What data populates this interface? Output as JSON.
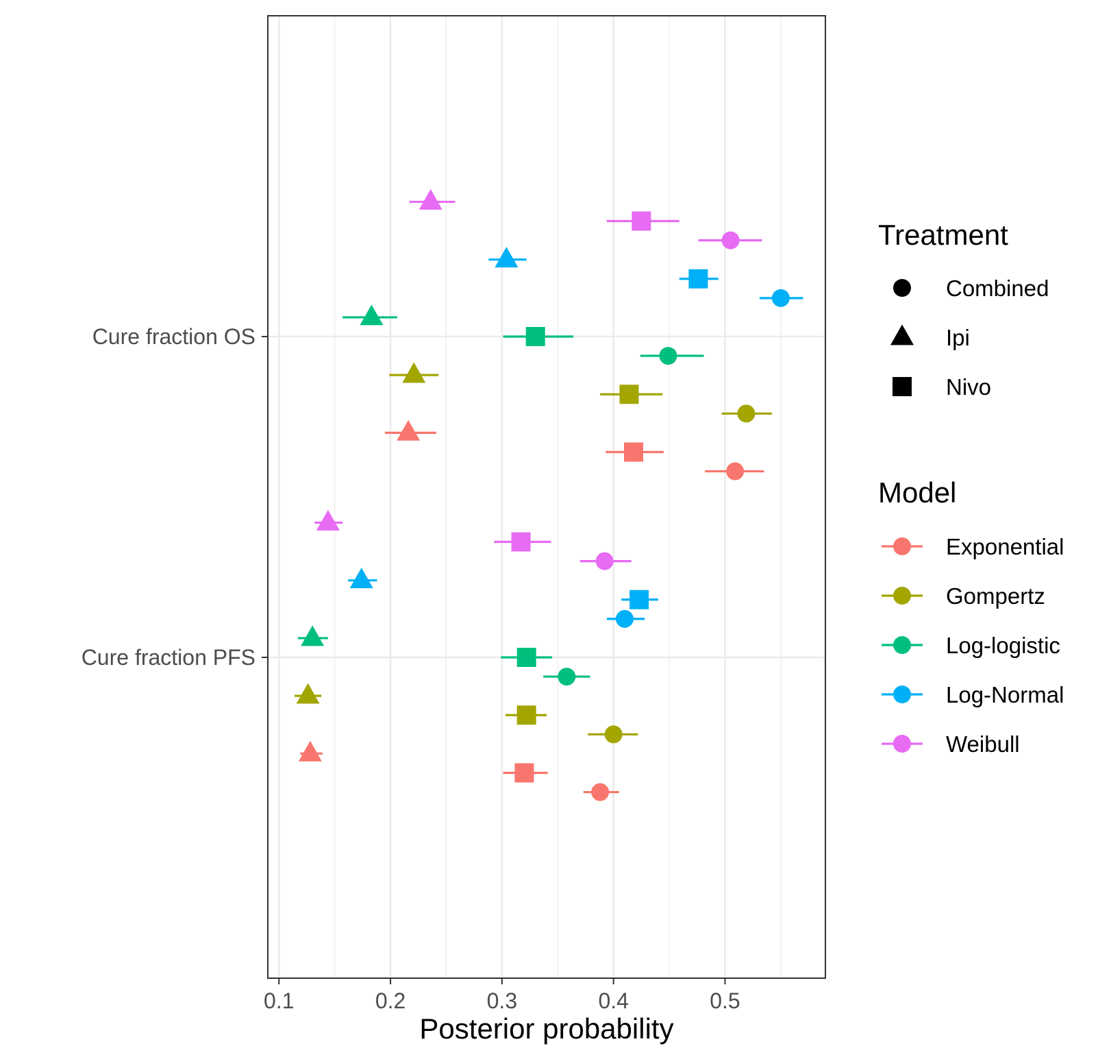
{
  "chart_data": {
    "type": "scatter",
    "subtype": "dot-and-interval",
    "orientation": "horizontal",
    "title": "",
    "xlabel": "Posterior probability",
    "ylabel": "",
    "xlim": [
      0.09,
      0.59
    ],
    "x_ticks": [
      0.1,
      0.2,
      0.3,
      0.4,
      0.5
    ],
    "x_tick_labels": [
      "0.1",
      "0.2",
      "0.3",
      "0.4",
      "0.5"
    ],
    "categories": [
      "Cure fraction PFS",
      "Cure fraction OS"
    ],
    "grid": true,
    "theme": "bw",
    "legend_position": "right",
    "legend": {
      "treatment": {
        "title": "Treatment",
        "items": [
          {
            "label": "Combined",
            "shape": "circle"
          },
          {
            "label": "Ipi",
            "shape": "triangle"
          },
          {
            "label": "Nivo",
            "shape": "square"
          }
        ]
      },
      "model": {
        "title": "Model",
        "items": [
          {
            "label": "Exponential",
            "color": "#F8766D"
          },
          {
            "label": "Gompertz",
            "color": "#A3A500"
          },
          {
            "label": "Log-logistic",
            "color": "#00BF7D"
          },
          {
            "label": "Log-Normal",
            "color": "#00B0F6"
          },
          {
            "label": "Weibull",
            "color": "#E76BF3"
          }
        ]
      }
    },
    "treatment_order": [
      "Combined",
      "Nivo",
      "Ipi"
    ],
    "series": [
      {
        "category": "Cure fraction PFS",
        "model": "Exponential",
        "treatment": "Combined",
        "x": 0.388,
        "low": 0.373,
        "high": 0.405
      },
      {
        "category": "Cure fraction PFS",
        "model": "Exponential",
        "treatment": "Nivo",
        "x": 0.32,
        "low": 0.301,
        "high": 0.341
      },
      {
        "category": "Cure fraction PFS",
        "model": "Exponential",
        "treatment": "Ipi",
        "x": 0.128,
        "low": 0.119,
        "high": 0.139
      },
      {
        "category": "Cure fraction PFS",
        "model": "Gompertz",
        "treatment": "Combined",
        "x": 0.4,
        "low": 0.377,
        "high": 0.422
      },
      {
        "category": "Cure fraction PFS",
        "model": "Gompertz",
        "treatment": "Nivo",
        "x": 0.322,
        "low": 0.303,
        "high": 0.34
      },
      {
        "category": "Cure fraction PFS",
        "model": "Gompertz",
        "treatment": "Ipi",
        "x": 0.126,
        "low": 0.114,
        "high": 0.138
      },
      {
        "category": "Cure fraction PFS",
        "model": "Log-logistic",
        "treatment": "Combined",
        "x": 0.358,
        "low": 0.337,
        "high": 0.379
      },
      {
        "category": "Cure fraction PFS",
        "model": "Log-logistic",
        "treatment": "Nivo",
        "x": 0.322,
        "low": 0.299,
        "high": 0.345
      },
      {
        "category": "Cure fraction PFS",
        "model": "Log-logistic",
        "treatment": "Ipi",
        "x": 0.13,
        "low": 0.117,
        "high": 0.144
      },
      {
        "category": "Cure fraction PFS",
        "model": "Log-Normal",
        "treatment": "Combined",
        "x": 0.41,
        "low": 0.394,
        "high": 0.428
      },
      {
        "category": "Cure fraction PFS",
        "model": "Log-Normal",
        "treatment": "Nivo",
        "x": 0.423,
        "low": 0.407,
        "high": 0.44
      },
      {
        "category": "Cure fraction PFS",
        "model": "Log-Normal",
        "treatment": "Ipi",
        "x": 0.174,
        "low": 0.162,
        "high": 0.188
      },
      {
        "category": "Cure fraction PFS",
        "model": "Weibull",
        "treatment": "Combined",
        "x": 0.392,
        "low": 0.37,
        "high": 0.416
      },
      {
        "category": "Cure fraction PFS",
        "model": "Weibull",
        "treatment": "Nivo",
        "x": 0.317,
        "low": 0.293,
        "high": 0.344
      },
      {
        "category": "Cure fraction PFS",
        "model": "Weibull",
        "treatment": "Ipi",
        "x": 0.144,
        "low": 0.132,
        "high": 0.157
      },
      {
        "category": "Cure fraction OS",
        "model": "Exponential",
        "treatment": "Combined",
        "x": 0.509,
        "low": 0.482,
        "high": 0.535
      },
      {
        "category": "Cure fraction OS",
        "model": "Exponential",
        "treatment": "Nivo",
        "x": 0.418,
        "low": 0.393,
        "high": 0.445
      },
      {
        "category": "Cure fraction OS",
        "model": "Exponential",
        "treatment": "Ipi",
        "x": 0.216,
        "low": 0.195,
        "high": 0.241
      },
      {
        "category": "Cure fraction OS",
        "model": "Gompertz",
        "treatment": "Combined",
        "x": 0.519,
        "low": 0.497,
        "high": 0.542
      },
      {
        "category": "Cure fraction OS",
        "model": "Gompertz",
        "treatment": "Nivo",
        "x": 0.414,
        "low": 0.388,
        "high": 0.444
      },
      {
        "category": "Cure fraction OS",
        "model": "Gompertz",
        "treatment": "Ipi",
        "x": 0.221,
        "low": 0.199,
        "high": 0.243
      },
      {
        "category": "Cure fraction OS",
        "model": "Log-logistic",
        "treatment": "Combined",
        "x": 0.449,
        "low": 0.424,
        "high": 0.481
      },
      {
        "category": "Cure fraction OS",
        "model": "Log-logistic",
        "treatment": "Nivo",
        "x": 0.33,
        "low": 0.301,
        "high": 0.364
      },
      {
        "category": "Cure fraction OS",
        "model": "Log-logistic",
        "treatment": "Ipi",
        "x": 0.183,
        "low": 0.157,
        "high": 0.206
      },
      {
        "category": "Cure fraction OS",
        "model": "Log-Normal",
        "treatment": "Combined",
        "x": 0.55,
        "low": 0.531,
        "high": 0.57
      },
      {
        "category": "Cure fraction OS",
        "model": "Log-Normal",
        "treatment": "Nivo",
        "x": 0.476,
        "low": 0.459,
        "high": 0.494
      },
      {
        "category": "Cure fraction OS",
        "model": "Log-Normal",
        "treatment": "Ipi",
        "x": 0.304,
        "low": 0.288,
        "high": 0.322
      },
      {
        "category": "Cure fraction OS",
        "model": "Weibull",
        "treatment": "Combined",
        "x": 0.505,
        "low": 0.476,
        "high": 0.533
      },
      {
        "category": "Cure fraction OS",
        "model": "Weibull",
        "treatment": "Nivo",
        "x": 0.425,
        "low": 0.394,
        "high": 0.459
      },
      {
        "category": "Cure fraction OS",
        "model": "Weibull",
        "treatment": "Ipi",
        "x": 0.236,
        "low": 0.217,
        "high": 0.258
      }
    ]
  }
}
